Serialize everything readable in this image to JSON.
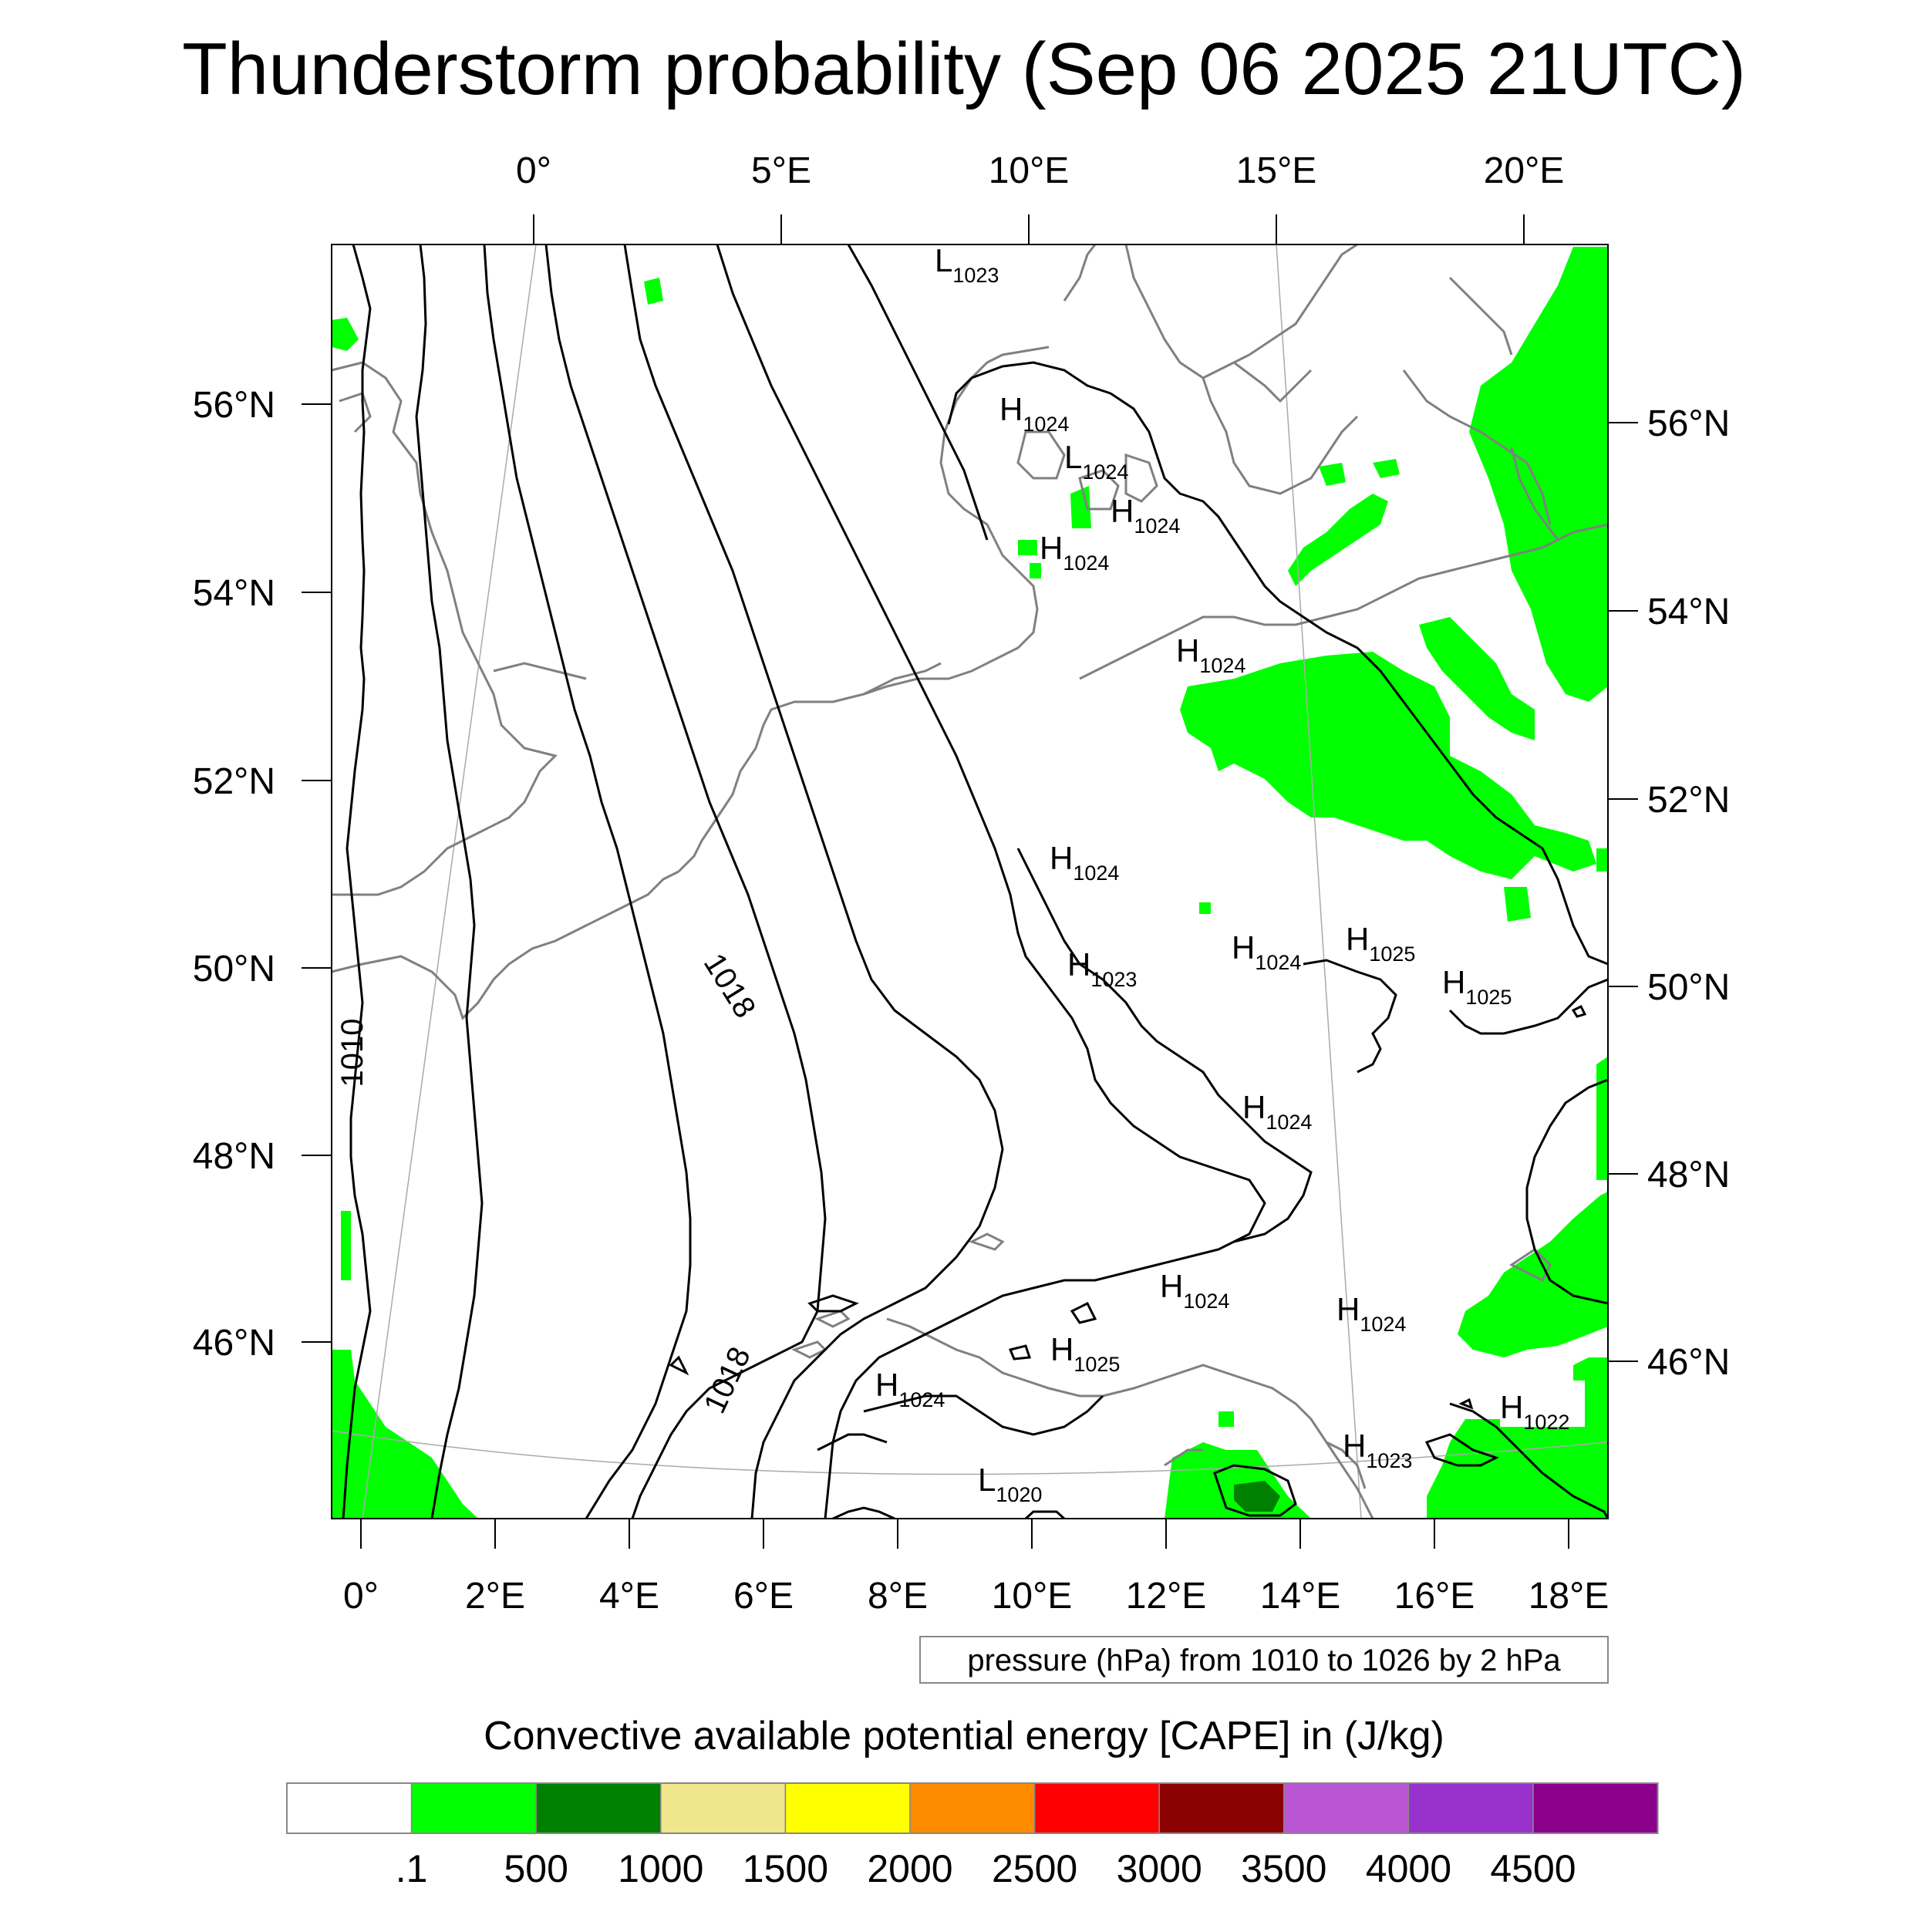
{
  "title": "Thunderstorm probability (Sep 06 2025 21UTC)",
  "top_lon_labels": [
    "0°",
    "5°E",
    "10°E",
    "15°E",
    "20°E"
  ],
  "bottom_lon_labels": [
    "0°",
    "2°E",
    "4°E",
    "6°E",
    "8°E",
    "10°E",
    "12°E",
    "14°E",
    "16°E",
    "18°E"
  ],
  "left_lat_labels": [
    "56°N",
    "54°N",
    "52°N",
    "50°N",
    "48°N",
    "46°N"
  ],
  "right_lat_labels": [
    "56°N",
    "54°N",
    "52°N",
    "50°N",
    "48°N",
    "46°N"
  ],
  "pressure_info": "pressure (hPa) from 1010 to 1026 by 2 hPa",
  "contour_labels": [
    "1018",
    "1010",
    "1018"
  ],
  "pressure_centers": [
    {
      "type": "L",
      "value": "1023"
    },
    {
      "type": "H",
      "value": "1024"
    },
    {
      "type": "L",
      "value": "1024"
    },
    {
      "type": "H",
      "value": "1024"
    },
    {
      "type": "H",
      "value": "1024"
    },
    {
      "type": "H",
      "value": "1024"
    },
    {
      "type": "H",
      "value": "1024"
    },
    {
      "type": "H",
      "value": "1023"
    },
    {
      "type": "H",
      "value": "1024"
    },
    {
      "type": "H",
      "value": "1025"
    },
    {
      "type": "H",
      "value": "1025"
    },
    {
      "type": "H",
      "value": "1024"
    },
    {
      "type": "H",
      "value": "1024"
    },
    {
      "type": "H",
      "value": "1024"
    },
    {
      "type": "H",
      "value": "1025"
    },
    {
      "type": "H",
      "value": "1024"
    },
    {
      "type": "H",
      "value": "1022"
    },
    {
      "type": "H",
      "value": "1023"
    },
    {
      "type": "L",
      "value": "1020"
    }
  ],
  "colorbar": {
    "title": "Convective available potential energy [CAPE] in (J/kg)",
    "colors": [
      "#ffffff",
      "#00ff00",
      "#008000",
      "#f0e68c",
      "#ffff00",
      "#ff8c00",
      "#ff0000",
      "#8b0000",
      "#ba55d3",
      "#9932cc",
      "#8b008b"
    ],
    "labels": [
      ".1",
      "500",
      "1000",
      "1500",
      "2000",
      "2500",
      "3000",
      "3500",
      "4000",
      "4500"
    ]
  },
  "colors": {
    "cape_low": "#00ff00",
    "cape_mid": "#008000",
    "coastline": "#808080",
    "isobar": "#000000"
  }
}
